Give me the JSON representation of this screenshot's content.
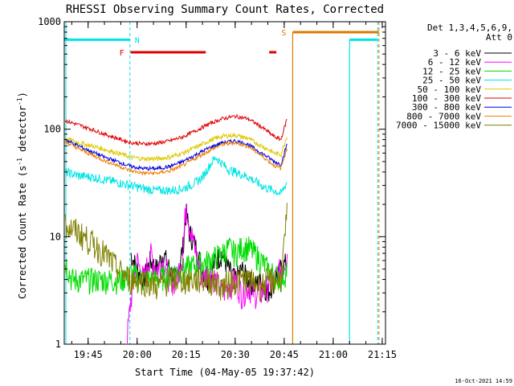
{
  "chart_data": {
    "type": "line",
    "title": "RHESSI Observing Summary Count Rates, Corrected",
    "xlabel": "Start Time (04-May-05 19:37:42)",
    "ylabel": "Corrected Count Rate (s",
    "ylabel_sup1": "-1",
    "ylabel_mid": " detector",
    "ylabel_sup2": "-1",
    "ylabel_end": ")",
    "y_scale": "log",
    "ylim": [
      1,
      1000
    ],
    "xlim_minutes": [
      37.7,
      136.0
    ],
    "x_ticks": [
      {
        "minute": 45,
        "label": "19:45"
      },
      {
        "minute": 60,
        "label": "20:00"
      },
      {
        "minute": 75,
        "label": "20:15"
      },
      {
        "minute": 90,
        "label": "20:30"
      },
      {
        "minute": 105,
        "label": "20:45"
      },
      {
        "minute": 120,
        "label": "21:00"
      },
      {
        "minute": 135,
        "label": "21:15"
      }
    ],
    "y_ticks": [
      {
        "value": 1,
        "label": "1"
      },
      {
        "value": 10,
        "label": "10"
      },
      {
        "value": 100,
        "label": "100"
      },
      {
        "value": 1000,
        "label": "1000"
      }
    ],
    "legend_header": [
      "Det 1,3,4,5,6,9,",
      "Att 0"
    ],
    "legend_position": "right",
    "timestamp": "16-Oct-2021 14:59",
    "markers": {
      "N_label": "N",
      "F_label": "F",
      "S_label": "S",
      "night_bars": [
        [
          37.7,
          57.8
        ],
        [
          125.0,
          133.6
        ]
      ],
      "night_edges": [
        57.8,
        125.0,
        133.6
      ],
      "flare_bars": [
        [
          58.0,
          81.0
        ],
        [
          100.4,
          102.6
        ]
      ],
      "saa_bar": [
        107.6,
        134.0
      ],
      "saa_edges": [
        107.6,
        134.0
      ],
      "colors": {
        "night": "#00e5e5",
        "flare": "#e00000",
        "saa": "#e07800"
      }
    },
    "series": [
      {
        "name": "3 - 6 keV",
        "color": "#000000",
        "x": [
          58,
          60,
          62,
          64,
          66,
          68,
          70,
          72,
          74,
          75,
          76,
          78,
          80,
          82,
          84,
          86,
          88,
          90,
          92,
          94,
          96,
          98,
          100,
          102,
          104,
          106
        ],
        "y": [
          7,
          5,
          4,
          6,
          5,
          7,
          5,
          4,
          8,
          17,
          11,
          8,
          5,
          4,
          6,
          7,
          5,
          4,
          5,
          4,
          3.5,
          4,
          3,
          4,
          5,
          6
        ]
      },
      {
        "name": "6 - 12 keV",
        "color": "#ff00ff",
        "x": [
          57,
          58,
          59,
          60,
          62,
          64,
          66,
          68,
          70,
          72,
          74,
          75,
          76,
          78,
          80,
          82,
          84,
          86,
          88,
          90,
          92,
          94,
          96,
          98,
          100,
          102,
          104,
          106
        ],
        "y": [
          1.2,
          2.5,
          4,
          6,
          4,
          7,
          5,
          6,
          4,
          4,
          7,
          22,
          13,
          7,
          4,
          5,
          4,
          3,
          3.5,
          4,
          3,
          3.5,
          3,
          3,
          3.5,
          4,
          5,
          7
        ]
      },
      {
        "name": "12 - 25 keV",
        "color": "#00dd00",
        "x": [
          38,
          40,
          45,
          50,
          55,
          58,
          62,
          66,
          70,
          74,
          78,
          82,
          86,
          88,
          90,
          92,
          94,
          96,
          98,
          100,
          102,
          104,
          106
        ],
        "y": [
          6,
          4,
          4,
          4,
          4,
          4.5,
          4,
          4,
          4.5,
          5,
          5.5,
          6,
          7,
          8,
          7,
          8,
          8,
          7,
          6,
          5,
          4.5,
          4,
          5
        ]
      },
      {
        "name": "25 - 50 keV",
        "color": "#00e5e5",
        "x": [
          38,
          42,
          46,
          50,
          54,
          58,
          62,
          66,
          70,
          74,
          78,
          80,
          82,
          84,
          86,
          88,
          90,
          92,
          94,
          96,
          98,
          100,
          102,
          104,
          106
        ],
        "y": [
          40,
          37,
          36,
          34,
          32,
          30,
          28,
          27,
          27,
          28,
          32,
          36,
          45,
          55,
          48,
          42,
          40,
          38,
          36,
          33,
          30,
          28,
          27,
          25,
          33
        ]
      },
      {
        "name": "50 - 100 keV",
        "color": "#e0c800",
        "x": [
          38,
          42,
          46,
          50,
          54,
          58,
          62,
          66,
          70,
          74,
          78,
          82,
          86,
          90,
          94,
          98,
          100,
          102,
          104,
          106
        ],
        "y": [
          82,
          75,
          70,
          65,
          60,
          55,
          53,
          53,
          55,
          60,
          68,
          78,
          86,
          88,
          82,
          70,
          65,
          60,
          58,
          90
        ]
      },
      {
        "name": "100 - 300 keV",
        "color": "#e00000",
        "x": [
          38,
          42,
          46,
          50,
          54,
          58,
          62,
          66,
          70,
          74,
          78,
          82,
          86,
          90,
          94,
          98,
          100,
          102,
          104,
          106
        ],
        "y": [
          120,
          110,
          100,
          90,
          82,
          75,
          73,
          74,
          78,
          85,
          97,
          112,
          125,
          132,
          125,
          105,
          95,
          85,
          80,
          130
        ]
      },
      {
        "name": "300 - 800 keV",
        "color": "#0000e0",
        "x": [
          38,
          42,
          46,
          50,
          54,
          58,
          62,
          66,
          70,
          74,
          78,
          82,
          86,
          90,
          94,
          98,
          100,
          102,
          104,
          106
        ],
        "y": [
          80,
          70,
          62,
          55,
          50,
          45,
          43,
          43,
          45,
          50,
          58,
          67,
          75,
          78,
          72,
          60,
          55,
          50,
          47,
          75
        ]
      },
      {
        "name": "800 - 7000 keV",
        "color": "#f08000",
        "x": [
          38,
          42,
          46,
          50,
          54,
          58,
          62,
          66,
          70,
          74,
          78,
          82,
          86,
          90,
          94,
          98,
          100,
          102,
          104,
          106
        ],
        "y": [
          76,
          66,
          58,
          51,
          46,
          41,
          39,
          39,
          41,
          46,
          54,
          63,
          72,
          75,
          69,
          57,
          51,
          46,
          43,
          70
        ]
      },
      {
        "name": "7000 - 15000 keV",
        "color": "#808000",
        "x": [
          38,
          40,
          42,
          44,
          46,
          48,
          50,
          52,
          54,
          56,
          58,
          60,
          62,
          66,
          70,
          74,
          78,
          82,
          86,
          90,
          94,
          98,
          100,
          102,
          104,
          106
        ],
        "y": [
          13,
          12,
          11,
          10,
          9,
          8,
          7,
          6,
          5,
          4.5,
          4,
          4,
          4,
          3.5,
          4,
          4,
          4,
          4,
          3.5,
          4,
          4,
          3.5,
          4,
          4,
          4,
          18
        ]
      }
    ]
  }
}
